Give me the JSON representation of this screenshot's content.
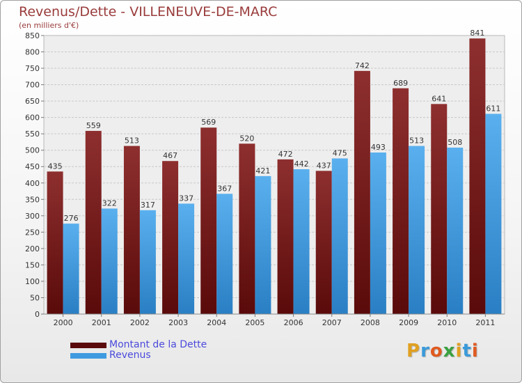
{
  "chart_data": {
    "type": "bar",
    "title": "Revenus/Dette - VILLENEUVE-DE-MARC",
    "subtitle": "(en milliers d'€)",
    "categories": [
      "2000",
      "2001",
      "2002",
      "2003",
      "2004",
      "2005",
      "2006",
      "2007",
      "2008",
      "2009",
      "2010",
      "2011"
    ],
    "series": [
      {
        "name": "Montant de la Dette",
        "color": "#7a1e1e",
        "values": [
          435,
          559,
          513,
          467,
          569,
          520,
          472,
          437,
          742,
          689,
          641,
          841
        ]
      },
      {
        "name": "Revenus",
        "color": "#3f9be0",
        "values": [
          276,
          322,
          317,
          337,
          367,
          421,
          442,
          475,
          493,
          513,
          508,
          611
        ]
      }
    ],
    "ylim": [
      0,
      850
    ],
    "yticks": [
      0,
      50,
      100,
      150,
      200,
      250,
      300,
      350,
      400,
      450,
      500,
      550,
      600,
      650,
      700,
      750,
      800,
      850
    ],
    "grid": true,
    "legend_position": "bottom-left"
  },
  "logo": {
    "letters": [
      "P",
      "r",
      "o",
      "x",
      "i",
      "t",
      "i"
    ],
    "colors": [
      "#e0a020",
      "#3a9ad9",
      "#e05a20",
      "#3aa040",
      "#e0a020",
      "#3a9ad9",
      "#e05a20"
    ]
  }
}
